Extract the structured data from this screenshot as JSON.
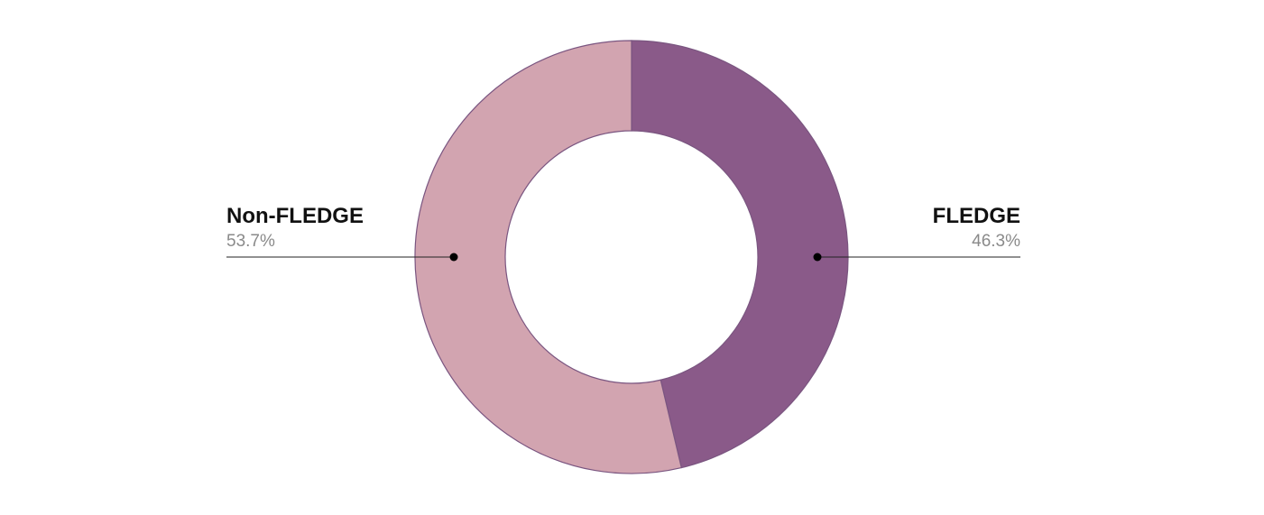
{
  "chart_data": {
    "type": "pie",
    "variant": "donut",
    "slices": [
      {
        "name": "FLEDGE",
        "value": 46.3,
        "value_label": "46.3%",
        "color": "#8a5a89",
        "label_side": "right"
      },
      {
        "name": "Non-FLEDGE",
        "value": 53.7,
        "value_label": "53.7%",
        "color": "#d2a4b0",
        "label_side": "left"
      }
    ],
    "start_angle": "12 o'clock",
    "direction": "clockwise",
    "slice_border_color": "#7a5580",
    "leader_line_color": "#222222",
    "legend": "none"
  }
}
